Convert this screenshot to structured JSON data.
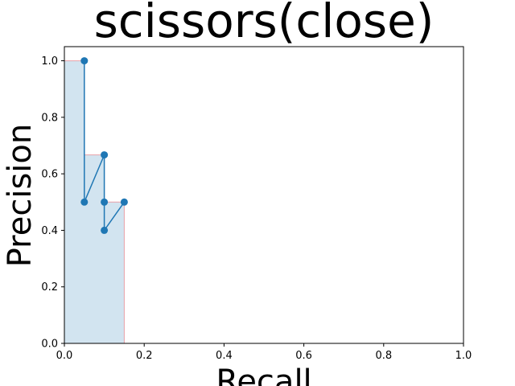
{
  "chart_data": {
    "type": "line",
    "title": "scissors(close)",
    "xlabel": "Recall",
    "ylabel": "Precision",
    "xlim": [
      0,
      1
    ],
    "ylim": [
      0,
      1.05
    ],
    "xticks": [
      "0.0",
      "0.2",
      "0.4",
      "0.6",
      "0.8",
      "1.0"
    ],
    "yticks": [
      "0.0",
      "0.2",
      "0.4",
      "0.6",
      "0.8",
      "1.0"
    ],
    "series": [
      {
        "points": [
          {
            "x": 0.05,
            "y": 1.0
          },
          {
            "x": 0.05,
            "y": 0.5
          },
          {
            "x": 0.1,
            "y": 0.667
          },
          {
            "x": 0.1,
            "y": 0.5
          },
          {
            "x": 0.1,
            "y": 0.4
          },
          {
            "x": 0.15,
            "y": 0.5
          }
        ],
        "color": "#1f77b4"
      }
    ],
    "interpolated": {
      "points": [
        {
          "x": 0.0,
          "y": 1.0
        },
        {
          "x": 0.05,
          "y": 1.0
        },
        {
          "x": 0.05,
          "y": 0.667
        },
        {
          "x": 0.1,
          "y": 0.667
        },
        {
          "x": 0.1,
          "y": 0.5
        },
        {
          "x": 0.15,
          "y": 0.5
        },
        {
          "x": 0.15,
          "y": 0.0
        }
      ],
      "fill_color": "#1f77b4",
      "edge_color": "#e8a0a8"
    },
    "grid": false
  }
}
